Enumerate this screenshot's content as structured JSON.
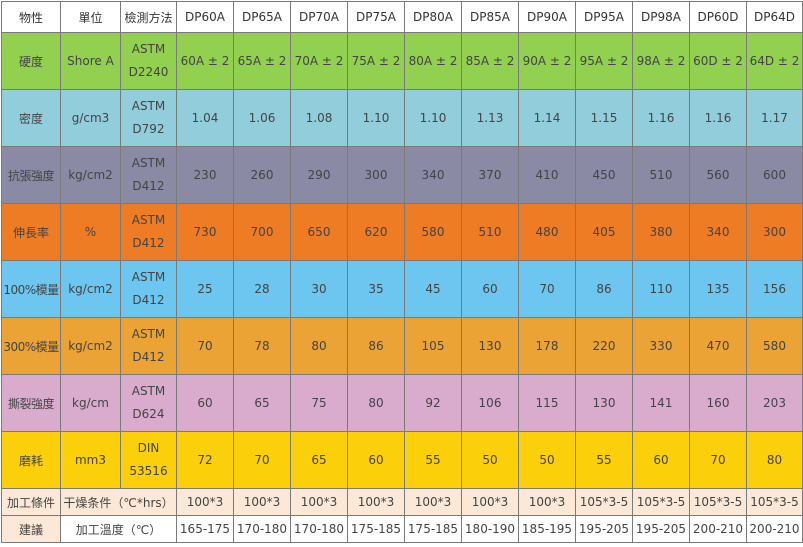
{
  "header": [
    "物性",
    "單位",
    "檢測方法",
    "DP60A",
    "DP65A",
    "DP70A",
    "DP75A",
    "DP80A",
    "DP85A",
    "DP90A",
    "DP95A",
    "DP98A",
    "DP60D",
    "DP64D"
  ],
  "rows": [
    {
      "property": "硬度",
      "unit": "Shore A",
      "method": [
        "ASTM",
        "D2240"
      ],
      "values": [
        "60A ± 2",
        "65A ± 2",
        "70A ± 2",
        "75A ± 2",
        "80A ± 2",
        "85A ± 2",
        "90A ± 2",
        "95A ± 2",
        "98A ± 2",
        "60D ± 2",
        "64D ± 2"
      ],
      "color": "#92d050"
    },
    {
      "property": "密度",
      "unit": "g/cm3",
      "method": [
        "ASTM",
        "D792"
      ],
      "values": [
        "1.04",
        "1.06",
        "1.08",
        "1.10",
        "1.10",
        "1.13",
        "1.14",
        "1.15",
        "1.16",
        "1.16",
        "1.17"
      ],
      "color": "#92cddc"
    },
    {
      "property": "抗張強度",
      "unit": "kg/cm2",
      "method": [
        "ASTM",
        "D412"
      ],
      "values": [
        "230",
        "260",
        "290",
        "300",
        "340",
        "370",
        "410",
        "450",
        "510",
        "560",
        "600"
      ],
      "color": "#8b8aa4"
    },
    {
      "property": "伸長率",
      "unit": "%",
      "method": [
        "ASTM",
        "D412"
      ],
      "values": [
        "730",
        "700",
        "650",
        "620",
        "580",
        "510",
        "480",
        "405",
        "380",
        "340",
        "300"
      ],
      "color": "#ee7c24"
    },
    {
      "property": "100%模量",
      "unit": "kg/cm2",
      "method": [
        "ASTM",
        "D412"
      ],
      "values": [
        "25",
        "28",
        "30",
        "35",
        "45",
        "60",
        "70",
        "86",
        "110",
        "135",
        "156"
      ],
      "color": "#6cc6ef"
    },
    {
      "property": "300%模量",
      "unit": "kg/cm2",
      "method": [
        "ASTM",
        "D412"
      ],
      "values": [
        "70",
        "78",
        "80",
        "86",
        "105",
        "130",
        "178",
        "220",
        "330",
        "470",
        "580"
      ],
      "color": "#eba336"
    },
    {
      "property": "撕裂強度",
      "unit": "kg/cm",
      "method": [
        "ASTM",
        "D624"
      ],
      "values": [
        "60",
        "65",
        "75",
        "80",
        "92",
        "106",
        "115",
        "130",
        "141",
        "160",
        "203"
      ],
      "color": "#d9acce"
    },
    {
      "property": "磨耗",
      "unit": "mm3",
      "method": [
        "DIN",
        "53516"
      ],
      "values": [
        "72",
        "70",
        "65",
        "60",
        "55",
        "50",
        "50",
        "55",
        "60",
        "70",
        "80"
      ],
      "color": "#fbcf0a"
    }
  ],
  "processing": {
    "head_top": "加工條件",
    "head_bottom": "建議",
    "rows": [
      {
        "label": "干燥条件（℃*hrs）",
        "values": [
          "100*3",
          "100*3",
          "100*3",
          "100*3",
          "100*3",
          "100*3",
          "100*3",
          "105*3-5",
          "105*3-5",
          "105*3-5",
          "105*3-5"
        ]
      },
      {
        "label": "加工溫度（℃）",
        "values": [
          "165-175",
          "170-180",
          "170-180",
          "175-185",
          "175-185",
          "180-190",
          "185-195",
          "195-205",
          "195-205",
          "200-210",
          "200-210"
        ]
      }
    ]
  }
}
